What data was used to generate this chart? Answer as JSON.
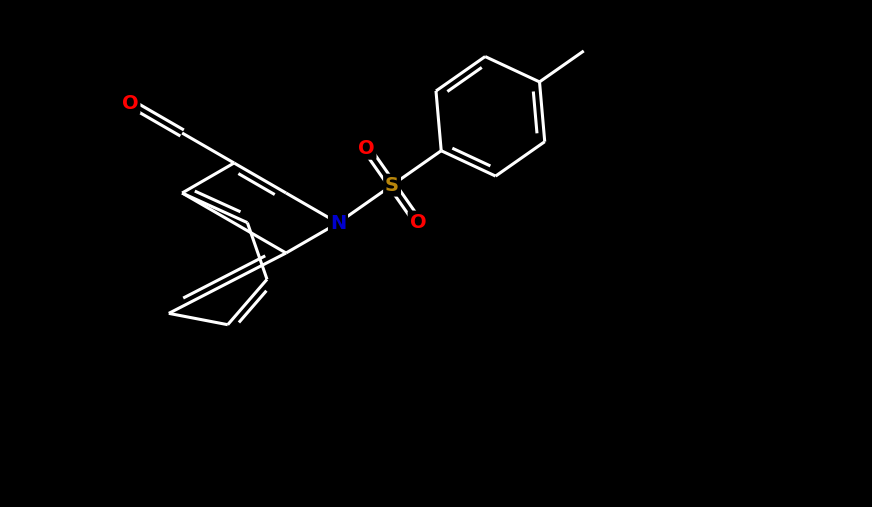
{
  "bg_color": "#000000",
  "bond_color": "#ffffff",
  "N_color": "#0000cd",
  "S_color": "#b8860b",
  "O_color": "#ff0000",
  "bond_width": 2.2,
  "fig_width": 8.72,
  "fig_height": 5.07,
  "dpi": 100,
  "xlim": [
    0,
    8.72
  ],
  "ylim": [
    0,
    5.07
  ]
}
